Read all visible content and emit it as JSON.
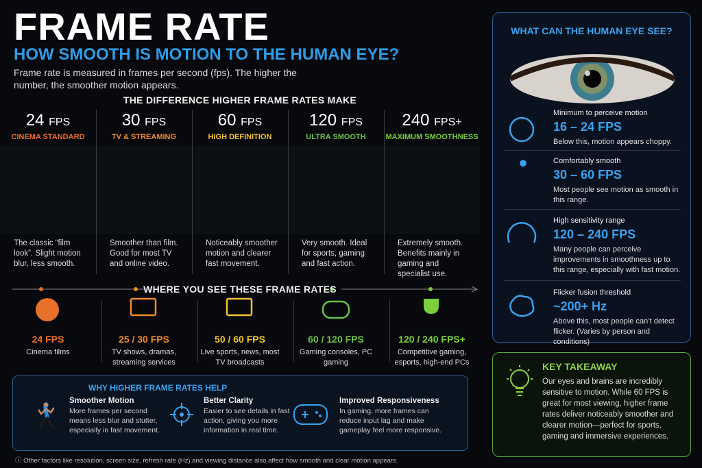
{
  "header": {
    "title": "FRAME RATE",
    "subtitle": "HOW SMOOTH IS MOTION TO THE HUMAN EYE?",
    "intro": "Frame rate is measured in frames per second (fps). The higher the number, the smoother motion appears."
  },
  "comparison": {
    "heading": "THE DIFFERENCE HIGHER FRAME RATES MAKE",
    "columns": [
      {
        "number": "24",
        "unit": "FPS",
        "label": "CINEMA STANDARD",
        "description": "The classic “film look”. Slight motion blur, less smooth."
      },
      {
        "number": "30",
        "unit": "FPS",
        "label": "TV & STREAMING",
        "description": "Smoother than film. Good for most TV and online video."
      },
      {
        "number": "60",
        "unit": "FPS",
        "label": "HIGH DEFINITION",
        "description": "Noticeably smoother motion and clearer fast movement."
      },
      {
        "number": "120",
        "unit": "FPS",
        "label": "ULTRA SMOOTH",
        "description": "Very smooth. Ideal for sports, gaming and fast action."
      },
      {
        "number": "240",
        "unit": "FPS+",
        "label": "MAXIMUM SMOOTHNESS",
        "description": "Extremely smooth. Benefits mainly in gaming and specialist use."
      }
    ]
  },
  "usage": {
    "heading": "WHERE YOU SEE THESE FRAME RATES",
    "items": [
      {
        "rate": "24 FPS",
        "description": "Cinema films"
      },
      {
        "rate": "25 / 30 FPS",
        "description": "TV shows, dramas, streaming services"
      },
      {
        "rate": "50 / 60 FPS",
        "description": "Live sports, news, most TV broadcasts"
      },
      {
        "rate": "60 / 120 FPS",
        "description": "Gaming consoles, PC gaming"
      },
      {
        "rate": "120 / 240 FPS+",
        "description": "Competitive gaming, esports, high-end PCs"
      }
    ]
  },
  "benefits": {
    "heading": "WHY HIGHER FRAME RATES HELP",
    "items": [
      {
        "title": "Smoother Motion",
        "description": "More frames per second means less blur and stutter, especially in fast movement."
      },
      {
        "title": "Better Clarity",
        "description": "Easier to see details in fast action, giving you more information in real time."
      },
      {
        "title": "Improved Responsiveness",
        "description": "In gaming, more frames can reduce input lag and make gameplay feel more responsive."
      }
    ]
  },
  "footnote": "Other factors like resolution, screen size, refresh rate (Hz) and viewing distance also affect how smooth and clear motion appears.",
  "eye": {
    "heading": "WHAT CAN THE HUMAN EYE SEE?",
    "items": [
      {
        "label": "Minimum to perceive motion",
        "value": "16 – 24 FPS",
        "description": "Below this, motion appears choppy."
      },
      {
        "label": "Comfortably smooth",
        "value": "30 – 60 FPS",
        "description": "Most people see motion as smooth in this range."
      },
      {
        "label": "High sensitivity range",
        "value": "120 – 240 FPS",
        "description": "Many people can perceive improvements in smoothness up to this range, especially with fast motion."
      },
      {
        "label": "Flicker fusion threshold",
        "value": "~200+ Hz",
        "description": "Above this, most people can’t detect flicker. (Varies by person and conditions)"
      }
    ]
  },
  "takeaway": {
    "heading": "KEY TAKEAWAY",
    "text": "Our eyes and brains are incredibly sensitive to motion. While 60 FPS is great for most viewing, higher frame rates deliver noticeably smoother and clearer motion—perfect for sports, gaming and immersive experiences."
  }
}
